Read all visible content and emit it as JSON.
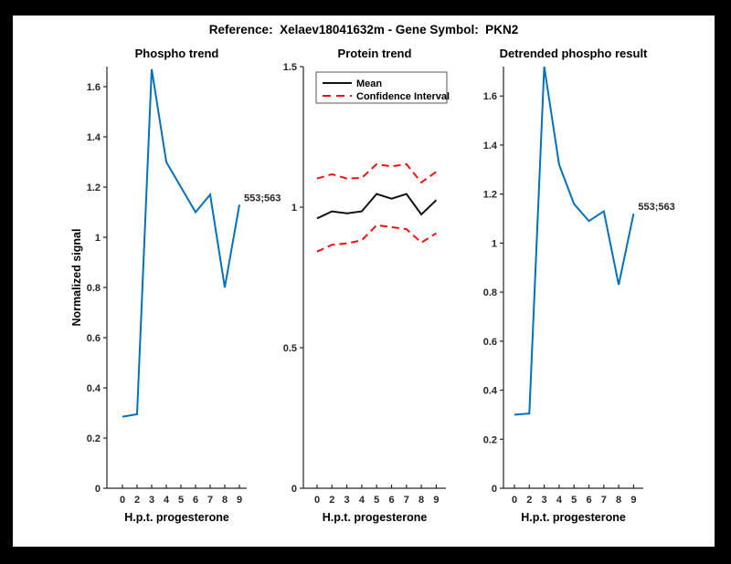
{
  "window": {
    "background": "#000000",
    "figure_background": "#ffffff"
  },
  "figure": {
    "title": "Reference:  Xelaev18041632m - Gene Symbol:  PKN2"
  },
  "colors": {
    "blue": "#0072BD",
    "red": "#f01010",
    "black": "#111111",
    "axis": "#262626",
    "tick_text": "#262626",
    "title_text": "#000000",
    "legend_border": "#555555"
  },
  "chart_data": [
    {
      "type": "line",
      "title": "Phospho trend",
      "xlabel": "H.p.t. progesterone",
      "ylabel": "Normalized signal",
      "x_tick_labels": [
        "0",
        "2",
        "3",
        "4",
        "5",
        "6",
        "7",
        "8",
        "9"
      ],
      "yticks": [
        0,
        0.2,
        0.4,
        0.6,
        0.8,
        1,
        1.2,
        1.4,
        1.6
      ],
      "ytick_labels": [
        "0",
        "0.2",
        "0.4",
        "0.6",
        "0.8",
        "1",
        "1.2",
        "1.4",
        "1.6"
      ],
      "ylim": [
        0,
        1.68
      ],
      "grid": false,
      "legend": null,
      "series": [
        {
          "name": "phospho-signal",
          "color_key": "blue",
          "style": "solid",
          "values": [
            0.285,
            0.295,
            1.67,
            1.3,
            1.2,
            1.1,
            1.17,
            0.8,
            1.13
          ]
        }
      ],
      "annotation": {
        "text": "553;563",
        "attach": "last-point"
      }
    },
    {
      "type": "line",
      "title": "Protein trend",
      "xlabel": "H.p.t. progesterone",
      "ylabel": "",
      "x_tick_labels": [
        "0",
        "2",
        "3",
        "4",
        "5",
        "6",
        "7",
        "8",
        "9"
      ],
      "yticks": [
        0,
        0.5,
        1,
        1.5
      ],
      "ytick_labels": [
        "0",
        "0.5",
        "1",
        "1.5"
      ],
      "ylim": [
        0,
        1.5
      ],
      "grid": false,
      "legend": {
        "position": "top-left",
        "entries": [
          {
            "label": "Mean",
            "color_key": "black",
            "style": "solid"
          },
          {
            "label": "Confidence Interval",
            "color_key": "red",
            "style": "dashed"
          }
        ]
      },
      "series": [
        {
          "name": "mean",
          "color_key": "black",
          "style": "solid",
          "values": [
            0.96,
            0.985,
            0.978,
            0.985,
            1.047,
            1.03,
            1.047,
            0.974,
            1.025
          ]
        },
        {
          "name": "confidence-upper",
          "color_key": "red",
          "style": "dashed",
          "values": [
            1.102,
            1.117,
            1.102,
            1.104,
            1.153,
            1.145,
            1.153,
            1.088,
            1.126
          ]
        },
        {
          "name": "confidence-lower",
          "color_key": "red",
          "style": "dashed",
          "values": [
            0.842,
            0.866,
            0.871,
            0.882,
            0.936,
            0.929,
            0.922,
            0.874,
            0.907
          ]
        }
      ],
      "annotation": null
    },
    {
      "type": "line",
      "title": "Detrended phospho result",
      "xlabel": "H.p.t. progesterone",
      "ylabel": "",
      "x_tick_labels": [
        "0",
        "2",
        "3",
        "4",
        "5",
        "6",
        "7",
        "8",
        "9"
      ],
      "yticks": [
        0,
        0.2,
        0.4,
        0.6,
        0.8,
        1,
        1.2,
        1.4,
        1.6
      ],
      "ytick_labels": [
        "0",
        "0.2",
        "0.4",
        "0.6",
        "0.8",
        "1",
        "1.2",
        "1.4",
        "1.6"
      ],
      "ylim": [
        0,
        1.72
      ],
      "grid": false,
      "legend": null,
      "series": [
        {
          "name": "detrended-phospho",
          "color_key": "blue",
          "style": "solid",
          "values": [
            0.3,
            0.305,
            1.72,
            1.32,
            1.16,
            1.09,
            1.13,
            0.83,
            1.12
          ]
        }
      ],
      "annotation": {
        "text": "553;563",
        "attach": "last-point"
      }
    }
  ]
}
